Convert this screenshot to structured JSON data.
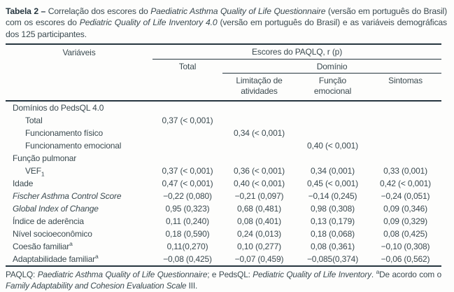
{
  "caption": {
    "segments": [
      {
        "text": "Tabela 2 – ",
        "style": "bold"
      },
      {
        "text": "Correlação dos escores do ",
        "style": "normal"
      },
      {
        "text": "Paediatric Asthma Quality of Life Questionnaire",
        "style": "italic"
      },
      {
        "text": " (versão em português do Brasil) com os escores do ",
        "style": "normal"
      },
      {
        "text": "Pediatric Quality of Life Inventory 4.0",
        "style": "italic"
      },
      {
        "text": " (versão em português do Brasil) e as variáveis demográficas dos 125 participantes.",
        "style": "normal"
      }
    ]
  },
  "table": {
    "header": {
      "variables": "Variáveis",
      "scores_group": "Escores do PAQLQ, r (p)",
      "total": "Total",
      "domain_group": "Domínio",
      "domain_cols": [
        "Limitação de\natividades",
        "Função\nemocional",
        "Sintomas"
      ]
    },
    "rows": [
      {
        "label": "Domínios do PedsQL 4.0",
        "indent": 0,
        "style": "normal",
        "values": [
          "",
          "",
          "",
          ""
        ]
      },
      {
        "label": "Total",
        "indent": 1,
        "style": "normal",
        "values": [
          "0,37 (< 0,001)",
          "",
          "",
          ""
        ]
      },
      {
        "label": "Funcionamento físico",
        "indent": 1,
        "style": "normal",
        "values": [
          "",
          "0,34 (< 0,001)",
          "",
          ""
        ]
      },
      {
        "label": "Funcionamento emocional",
        "indent": 1,
        "style": "normal",
        "values": [
          "",
          "",
          "0,40 (< 0,001)",
          ""
        ]
      },
      {
        "label": "Função pulmonar",
        "indent": 0,
        "style": "normal",
        "values": [
          "",
          "",
          "",
          ""
        ]
      },
      {
        "label": "VEF",
        "sub": "1",
        "indent": 1,
        "style": "normal",
        "values": [
          "0,37 (< 0,001)",
          "0,36 (< 0,001)",
          "0,34 (0,001)",
          "0,33 (0,001)"
        ]
      },
      {
        "label": "Idade",
        "indent": 0,
        "style": "normal",
        "values": [
          "0,47 (< 0,001)",
          "0,40 (< 0,001)",
          "0,45 (< 0,001)",
          "0,42 (< 0,001)"
        ]
      },
      {
        "label": "Fischer Asthma Control Score",
        "indent": 0,
        "style": "italic",
        "values": [
          "−0,22 (0,080)",
          "−0,21 (0,097)",
          "−0,14 (0,245)",
          "−0,24 (0,051)"
        ]
      },
      {
        "label": "Global Index of Change",
        "indent": 0,
        "style": "italic",
        "values": [
          "0,95 (0,323)",
          "0,68 (0,481)",
          "0,98 (0,308)",
          "0,09 (0,346)"
        ]
      },
      {
        "label": "Índice de aderência",
        "indent": 0,
        "style": "normal",
        "values": [
          "0,11 (0,240)",
          "0,08 (0,401)",
          "0,13 (0,179)",
          "0,09 (0,329)"
        ]
      },
      {
        "label": "Nível socioeconômico",
        "indent": 0,
        "style": "normal",
        "values": [
          "0,18 (0,590)",
          "0,24 (0,013)",
          "0,18 (0,068)",
          "0,08 (0,425)"
        ]
      },
      {
        "label": "Coesão familiar",
        "sup": "a",
        "indent": 0,
        "style": "normal",
        "values": [
          "0,11(0,270)",
          "0,10 (0,277)",
          "0,08 (0,361)",
          "−0,10 (0,308)"
        ]
      },
      {
        "label": "Adaptabilidade familiar",
        "sup": "a",
        "indent": 0,
        "style": "normal",
        "values": [
          "−0,08 (0,425)",
          "−0,07 (0,459)",
          "−0,085(0,374)",
          "−0,06 (0,562)"
        ]
      }
    ]
  },
  "footnote": {
    "segments": [
      {
        "text": "PAQLQ: ",
        "style": "normal"
      },
      {
        "text": "Paediatric Asthma Quality of Life Questionnaire",
        "style": "italic"
      },
      {
        "text": "; e PedsQL: ",
        "style": "normal"
      },
      {
        "text": "Pediatric Quality of Life Inventory",
        "style": "italic"
      },
      {
        "text": ". ",
        "style": "normal"
      },
      {
        "text": "a",
        "style": "sup"
      },
      {
        "text": "De acordo com o ",
        "style": "normal"
      },
      {
        "text": "Family Adaptability and Cohesion Evaluation Scale",
        "style": "italic"
      },
      {
        "text": " III.",
        "style": "normal"
      }
    ]
  },
  "colors": {
    "text": "#3b4a50",
    "rule": "#26363f",
    "background": "#fdfdfc"
  }
}
